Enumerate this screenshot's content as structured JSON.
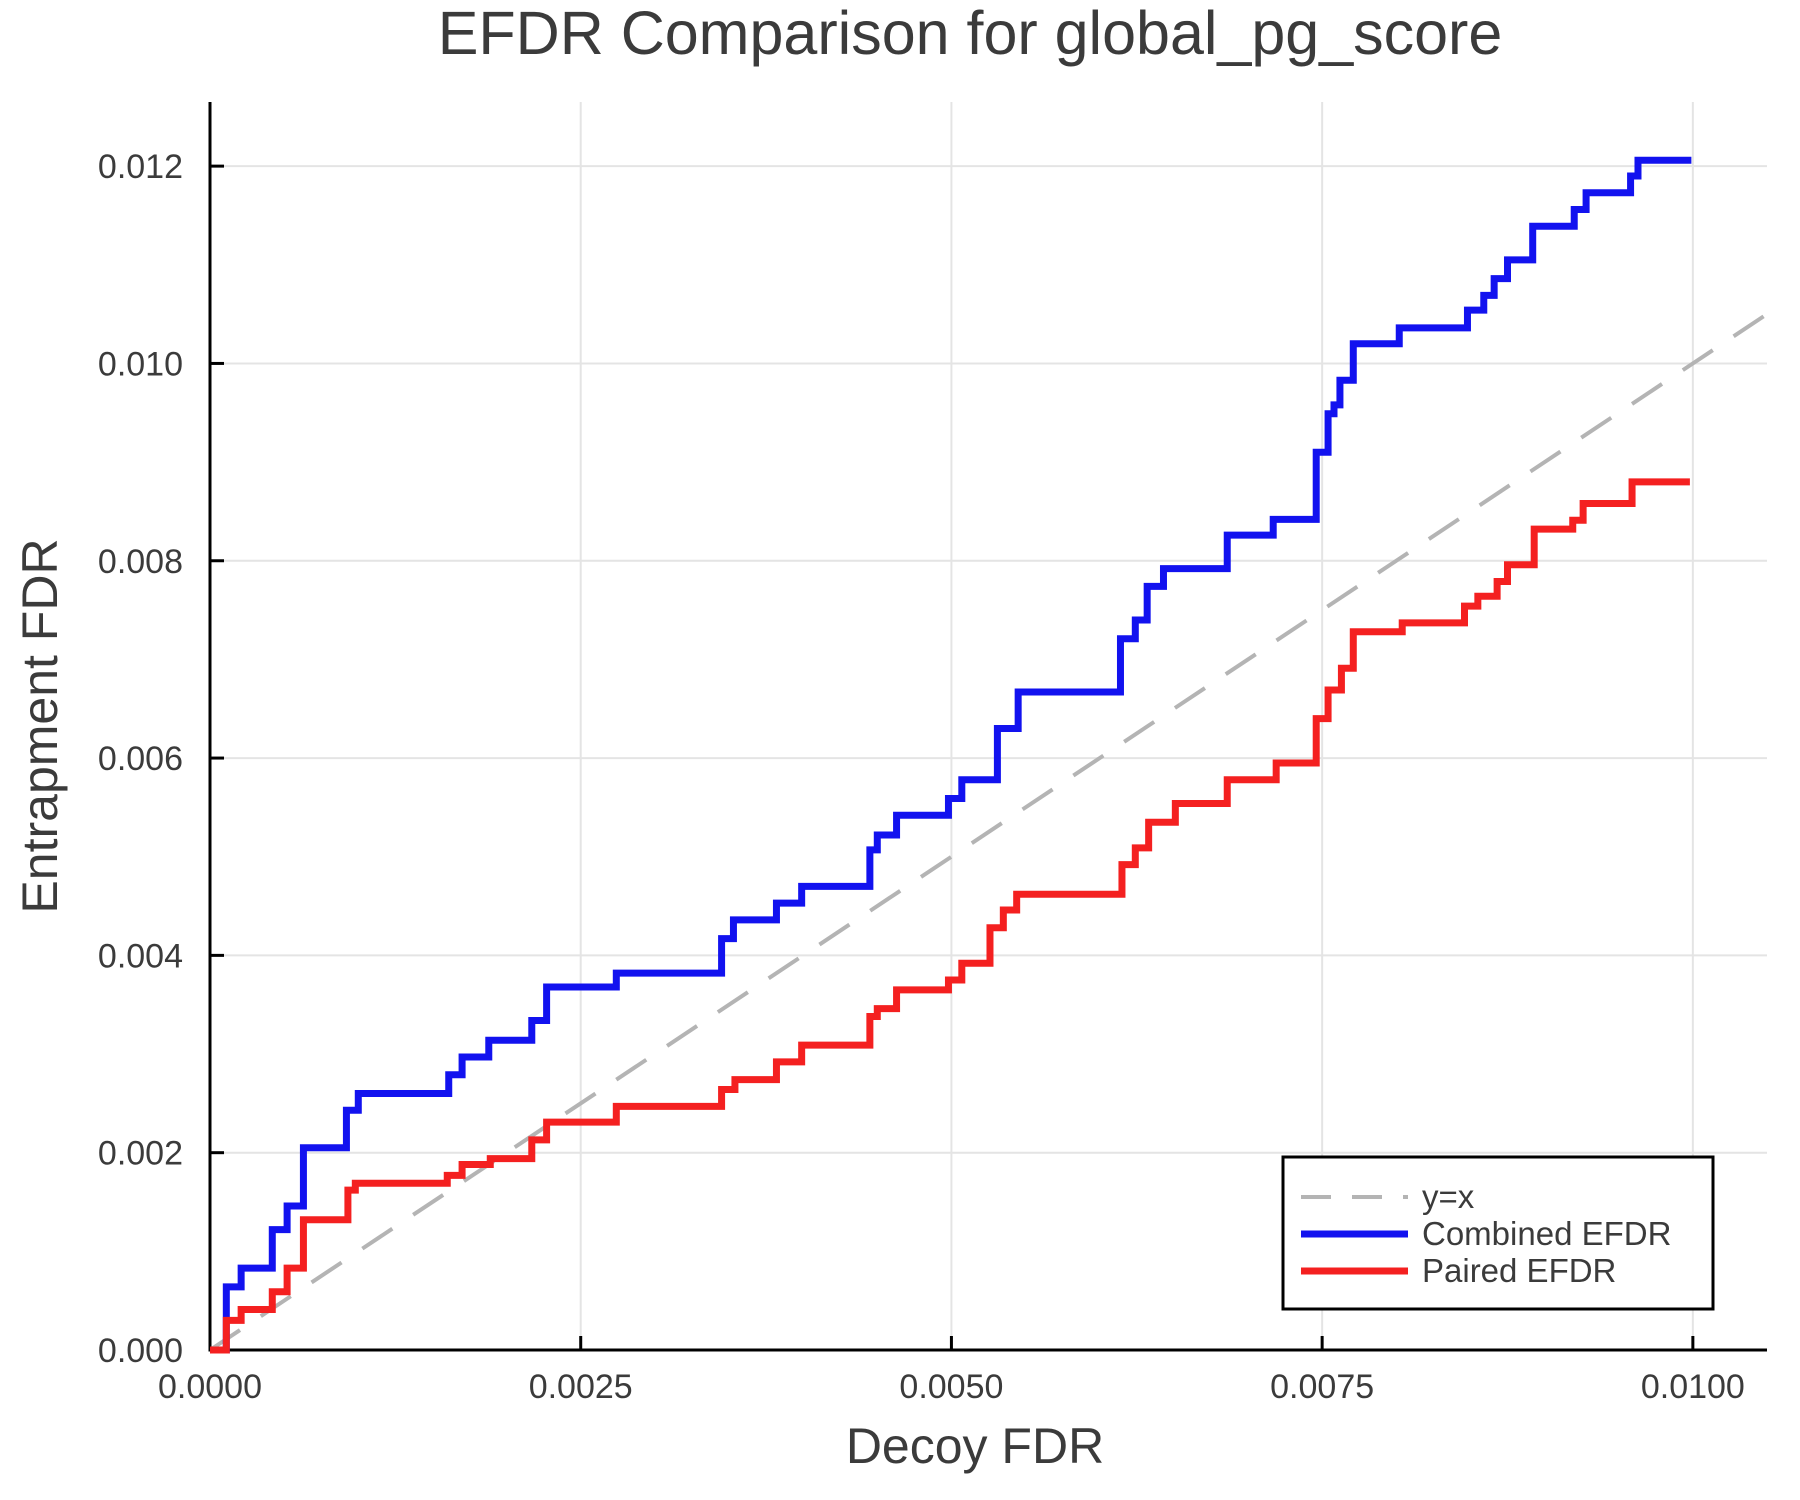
{
  "chart_data": {
    "type": "line",
    "title": "EFDR Comparison for global_pg_score",
    "xlabel": "Decoy FDR",
    "ylabel": "Entrapment FDR",
    "xlim": [
      0,
      0.0105
    ],
    "ylim": [
      0,
      0.01265
    ],
    "grid": true,
    "legend_position": "bottom-right",
    "xticks": {
      "values": [
        0.0,
        0.0025,
        0.005,
        0.0075,
        0.01
      ],
      "labels": [
        "0.0000",
        "0.0025",
        "0.0050",
        "0.0075",
        "0.0100"
      ]
    },
    "yticks": {
      "values": [
        0.0,
        0.002,
        0.004,
        0.006,
        0.008,
        0.01,
        0.012
      ],
      "labels": [
        "0.000",
        "0.002",
        "0.004",
        "0.006",
        "0.008",
        "0.010",
        "0.012"
      ]
    },
    "series": [
      {
        "name": "y=x",
        "kind": "diagonal",
        "style": "dashed",
        "color": "#b4b4b4",
        "from": [
          0,
          0
        ],
        "to": [
          0.0105,
          0.0105
        ]
      },
      {
        "name": "Combined EFDR",
        "kind": "step",
        "style": "solid",
        "color": "#1212ef",
        "start": [
          0,
          0
        ],
        "end_x": 0.00999,
        "steps": [
          [
            0.00011,
            0.00064
          ],
          [
            0.00021,
            0.00083
          ],
          [
            0.00042,
            0.00122
          ],
          [
            0.00052,
            0.00146
          ],
          [
            0.00063,
            0.00205
          ],
          [
            0.00092,
            0.00243
          ],
          [
            0.001,
            0.0026
          ],
          [
            0.00161,
            0.00279
          ],
          [
            0.0017,
            0.00297
          ],
          [
            0.00188,
            0.00314
          ],
          [
            0.00217,
            0.00334
          ],
          [
            0.00227,
            0.00368
          ],
          [
            0.00274,
            0.00382
          ],
          [
            0.00345,
            0.00417
          ],
          [
            0.00353,
            0.00436
          ],
          [
            0.00382,
            0.00453
          ],
          [
            0.00399,
            0.0047
          ],
          [
            0.00445,
            0.00507
          ],
          [
            0.0045,
            0.00522
          ],
          [
            0.00463,
            0.00542
          ],
          [
            0.00498,
            0.00559
          ],
          [
            0.00507,
            0.00578
          ],
          [
            0.00531,
            0.0063
          ],
          [
            0.00545,
            0.00667
          ],
          [
            0.00614,
            0.00721
          ],
          [
            0.00624,
            0.0074
          ],
          [
            0.00632,
            0.00774
          ],
          [
            0.00643,
            0.00792
          ],
          [
            0.00686,
            0.00826
          ],
          [
            0.00717,
            0.00842
          ],
          [
            0.00746,
            0.0091
          ],
          [
            0.00754,
            0.00949
          ],
          [
            0.00758,
            0.00958
          ],
          [
            0.00762,
            0.00983
          ],
          [
            0.00771,
            0.0102
          ],
          [
            0.00802,
            0.01036
          ],
          [
            0.00848,
            0.01054
          ],
          [
            0.00859,
            0.01069
          ],
          [
            0.00866,
            0.01086
          ],
          [
            0.00875,
            0.01105
          ],
          [
            0.00892,
            0.01139
          ],
          [
            0.0092,
            0.01156
          ],
          [
            0.00928,
            0.01173
          ],
          [
            0.00958,
            0.0119
          ],
          [
            0.00963,
            0.01206
          ]
        ]
      },
      {
        "name": "Paired EFDR",
        "kind": "step",
        "style": "solid",
        "color": "#f42020",
        "start": [
          0,
          0
        ],
        "end_x": 0.00998,
        "steps": [
          [
            0.00011,
            0.0003
          ],
          [
            0.00021,
            0.00041
          ],
          [
            0.00042,
            0.00059
          ],
          [
            0.00052,
            0.00083
          ],
          [
            0.00063,
            0.00132
          ],
          [
            0.00093,
            0.00162
          ],
          [
            0.00098,
            0.00169
          ],
          [
            0.0016,
            0.00177
          ],
          [
            0.0017,
            0.00188
          ],
          [
            0.00189,
            0.00194
          ],
          [
            0.00217,
            0.00213
          ],
          [
            0.00227,
            0.00231
          ],
          [
            0.00274,
            0.00247
          ],
          [
            0.00345,
            0.00264
          ],
          [
            0.00354,
            0.00274
          ],
          [
            0.00382,
            0.00292
          ],
          [
            0.00399,
            0.00309
          ],
          [
            0.00445,
            0.00338
          ],
          [
            0.0045,
            0.00346
          ],
          [
            0.00463,
            0.00365
          ],
          [
            0.00498,
            0.00375
          ],
          [
            0.00507,
            0.00392
          ],
          [
            0.00526,
            0.00428
          ],
          [
            0.00535,
            0.00446
          ],
          [
            0.00544,
            0.00462
          ],
          [
            0.00615,
            0.00492
          ],
          [
            0.00624,
            0.00509
          ],
          [
            0.00633,
            0.00535
          ],
          [
            0.00651,
            0.00554
          ],
          [
            0.00686,
            0.00578
          ],
          [
            0.00719,
            0.00595
          ],
          [
            0.00746,
            0.0064
          ],
          [
            0.00754,
            0.00669
          ],
          [
            0.00763,
            0.00691
          ],
          [
            0.00771,
            0.00728
          ],
          [
            0.00804,
            0.00737
          ],
          [
            0.00846,
            0.00754
          ],
          [
            0.00855,
            0.00764
          ],
          [
            0.00868,
            0.00779
          ],
          [
            0.00875,
            0.00796
          ],
          [
            0.00893,
            0.00832
          ],
          [
            0.00919,
            0.00841
          ],
          [
            0.00926,
            0.00858
          ],
          [
            0.00959,
            0.0088
          ]
        ]
      }
    ],
    "colors": {
      "grid": "#e4e4e4",
      "spine": "#000000",
      "text": "#3b3b3b",
      "background": "#ffffff",
      "legend_border": "#000000"
    }
  }
}
